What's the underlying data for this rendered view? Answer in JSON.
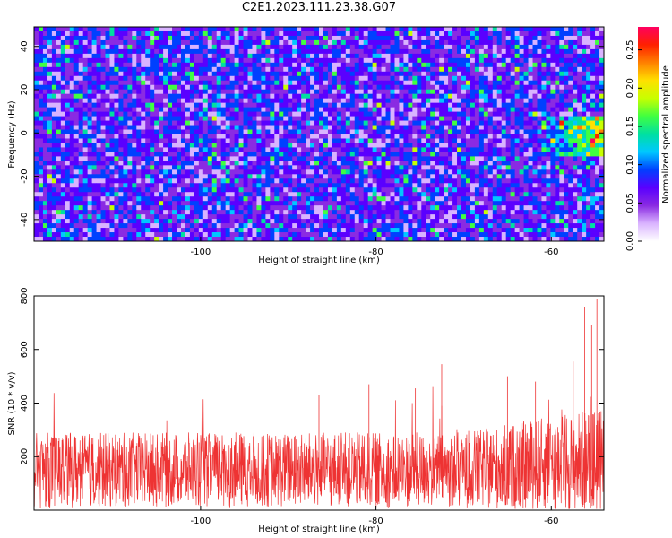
{
  "title": "C2E1.2023.111.23.38.G07",
  "chart_data": [
    {
      "type": "heatmap",
      "title": "C2E1.2023.111.23.38.G07",
      "xlabel": "Height of straight line (km)",
      "ylabel": "Frequency (Hz)",
      "xlim": [
        -119,
        -54
      ],
      "ylim": [
        -50,
        49
      ],
      "x_ticks": [
        -100,
        -80,
        -60
      ],
      "y_ticks": [
        -40,
        -20,
        0,
        20,
        40
      ],
      "colorbar": {
        "label": "Normalized spectral amplitude",
        "range": [
          0,
          0.28
        ],
        "ticks": [
          "0.00",
          "0.05",
          "0.10",
          "0.15",
          "0.20",
          "0.25"
        ],
        "colormap": [
          "#ffffff",
          "#d9b3ff",
          "#8a2be2",
          "#5a00ff",
          "#0040ff",
          "#00c8ff",
          "#00e0a0",
          "#40ff40",
          "#c8ff00",
          "#ffe000",
          "#ff8000",
          "#ff2000",
          "#ff0060"
        ]
      },
      "grid": false,
      "hotspot": {
        "x_range": [
          -62,
          -54
        ],
        "y_center": 0
      }
    },
    {
      "type": "line",
      "xlabel": "Height of straight line (km)",
      "ylabel": "SNR (10 * v/v)",
      "xlim": [
        -119,
        -54
      ],
      "ylim": [
        0,
        800
      ],
      "x_ticks": [
        -100,
        -80,
        -60
      ],
      "y_ticks": [
        200,
        400,
        600,
        800
      ],
      "color": "#ee3333",
      "grid": false,
      "noise_mean": 150,
      "noise_spread": 140,
      "spikes": [
        {
          "x": -72.5,
          "y": 545
        },
        {
          "x": -80.8,
          "y": 470
        },
        {
          "x": -75.5,
          "y": 455
        },
        {
          "x": -86.5,
          "y": 430
        },
        {
          "x": -65.0,
          "y": 500
        },
        {
          "x": -57.5,
          "y": 555
        },
        {
          "x": -56.2,
          "y": 760
        },
        {
          "x": -54.8,
          "y": 790
        },
        {
          "x": -55.4,
          "y": 690
        },
        {
          "x": -61.8,
          "y": 480
        }
      ]
    }
  ]
}
